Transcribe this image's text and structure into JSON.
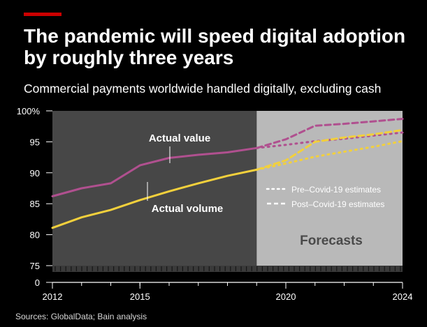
{
  "title": "The pandemic will speed digital adoption by roughly three years",
  "subtitle": "Commercial payments worldwide handled digitally, excluding cash",
  "source": "Sources: GlobalData; Bain analysis",
  "chart_data": {
    "type": "line",
    "yticks": [
      "100%",
      "95",
      "90",
      "85",
      "80",
      "75",
      "0"
    ],
    "ylim": [
      75,
      100
    ],
    "xticks": [
      "2012",
      "2015",
      "2020",
      "2024"
    ],
    "xlim": [
      2012,
      2024
    ],
    "forecast_label": "Forecasts",
    "forecast_start": 2019,
    "legend": {
      "pre": "Pre–Covid-19 estimates",
      "post": "Post–Covid-19 estimates"
    },
    "annotations": {
      "value": "Actual value",
      "volume": "Actual volume"
    },
    "colors": {
      "value": "#b0508f",
      "volume": "#f2d03c",
      "actual_bg": "#474747",
      "forecast_bg": "#b9b9b9"
    },
    "series": [
      {
        "key": "value_actual",
        "x": [
          2012,
          2013,
          2014,
          2015,
          2016,
          2017,
          2018,
          2019
        ],
        "values": [
          86.2,
          87.5,
          88.3,
          91.2,
          92.4,
          92.9,
          93.3,
          94.0
        ]
      },
      {
        "key": "volume_actual",
        "x": [
          2012,
          2013,
          2014,
          2015,
          2016,
          2017,
          2018,
          2019
        ],
        "values": [
          81.1,
          82.8,
          84.0,
          85.6,
          87.0,
          88.3,
          89.5,
          90.5
        ]
      },
      {
        "key": "value_post",
        "x": [
          2019,
          2020,
          2021,
          2022,
          2023,
          2024
        ],
        "values": [
          94.0,
          95.4,
          97.6,
          97.9,
          98.3,
          98.7
        ]
      },
      {
        "key": "value_pre",
        "x": [
          2019,
          2020,
          2021,
          2022,
          2023,
          2024
        ],
        "values": [
          94.0,
          94.5,
          95.1,
          95.5,
          96.0,
          96.5
        ]
      },
      {
        "key": "volume_post",
        "x": [
          2019,
          2020,
          2021,
          2022,
          2023,
          2024
        ],
        "values": [
          90.5,
          92.0,
          95.0,
          95.7,
          96.2,
          96.9
        ]
      },
      {
        "key": "volume_pre",
        "x": [
          2019,
          2020,
          2021,
          2022,
          2023,
          2024
        ],
        "values": [
          90.5,
          91.5,
          92.6,
          93.4,
          94.2,
          95.1
        ]
      }
    ]
  }
}
